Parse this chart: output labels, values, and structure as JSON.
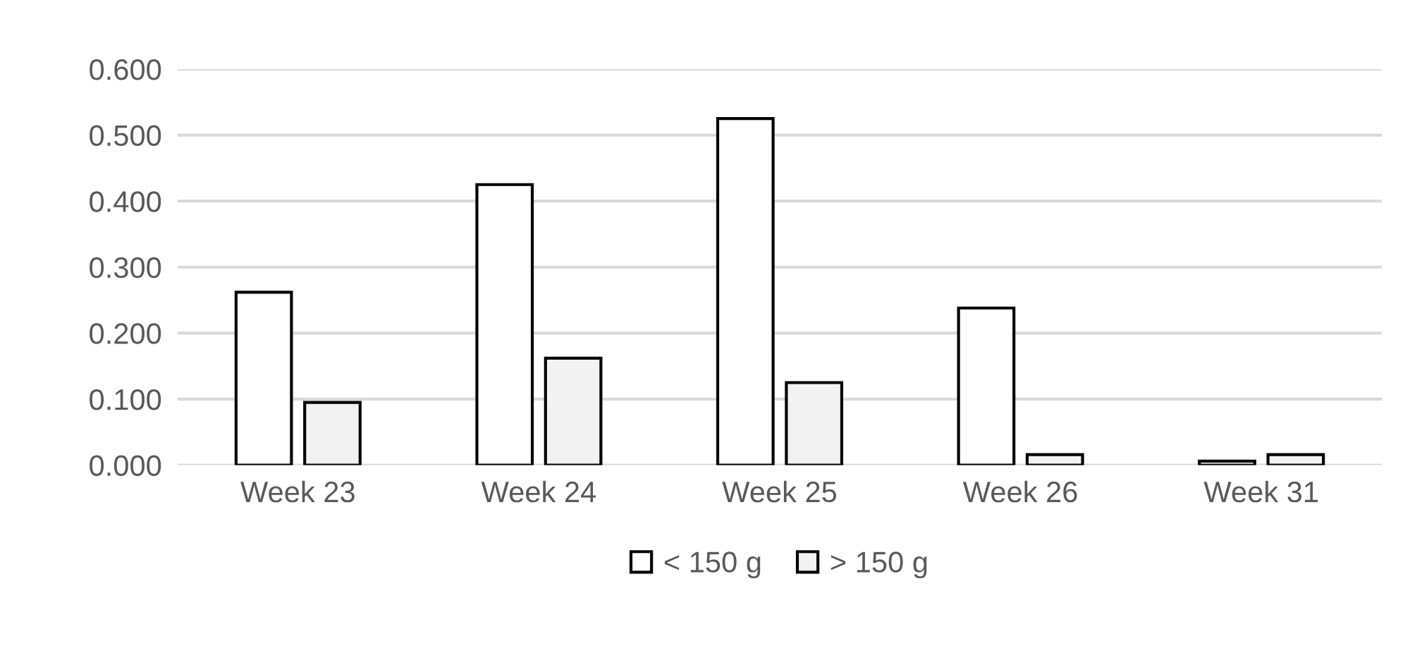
{
  "chart_data": {
    "type": "bar",
    "categories": [
      "Week 23",
      "Week 24",
      "Week 25",
      "Week 26",
      "Week 31"
    ],
    "series": [
      {
        "name": "< 150 g",
        "color": "#ffffff",
        "values": [
          0.262,
          0.425,
          0.525,
          0.238,
          0.006
        ]
      },
      {
        "name": "> 150 g",
        "color": "#f2f2f2",
        "values": [
          0.095,
          0.162,
          0.125,
          0.016,
          0.016
        ]
      }
    ],
    "ylim": [
      0,
      0.6
    ],
    "yticks": [
      {
        "value": 0,
        "label": "0.000"
      },
      {
        "value": 0.1,
        "label": "0.100"
      },
      {
        "value": 0.2,
        "label": "0.200"
      },
      {
        "value": 0.3,
        "label": "0.300"
      },
      {
        "value": 0.4,
        "label": "0.400"
      },
      {
        "value": 0.5,
        "label": "0.500"
      },
      {
        "value": 0.6,
        "label": "0.600"
      }
    ],
    "grid": "y",
    "legend": "bottom"
  }
}
